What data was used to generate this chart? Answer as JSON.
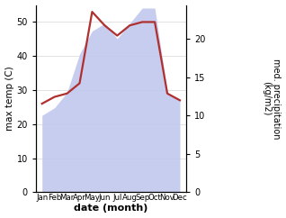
{
  "months": [
    "Jan",
    "Feb",
    "Mar",
    "Apr",
    "May",
    "Jun",
    "Jul",
    "Aug",
    "Sep",
    "Oct",
    "Nov",
    "Dec"
  ],
  "x": [
    1,
    2,
    3,
    4,
    5,
    6,
    7,
    8,
    9,
    10,
    11,
    12
  ],
  "temp": [
    26,
    28,
    29,
    32,
    53,
    49,
    46,
    49,
    50,
    50,
    29,
    27
  ],
  "precip": [
    10,
    11,
    13,
    18,
    21,
    22,
    20,
    22,
    24,
    24,
    13,
    12
  ],
  "temp_color": "#b03030",
  "precip_fill_color": "#c0c8ee",
  "left_ylim": [
    0,
    55
  ],
  "right_ylim": [
    0,
    24.4
  ],
  "left_yticks": [
    0,
    10,
    20,
    30,
    40,
    50
  ],
  "right_yticks": [
    0,
    5,
    10,
    15,
    20
  ],
  "xlabel": "date (month)",
  "ylabel_left": "max temp (C)",
  "ylabel_right": "med. precipitation\n(kg/m2)",
  "background_color": "#ffffff",
  "temp_linewidth": 1.6
}
